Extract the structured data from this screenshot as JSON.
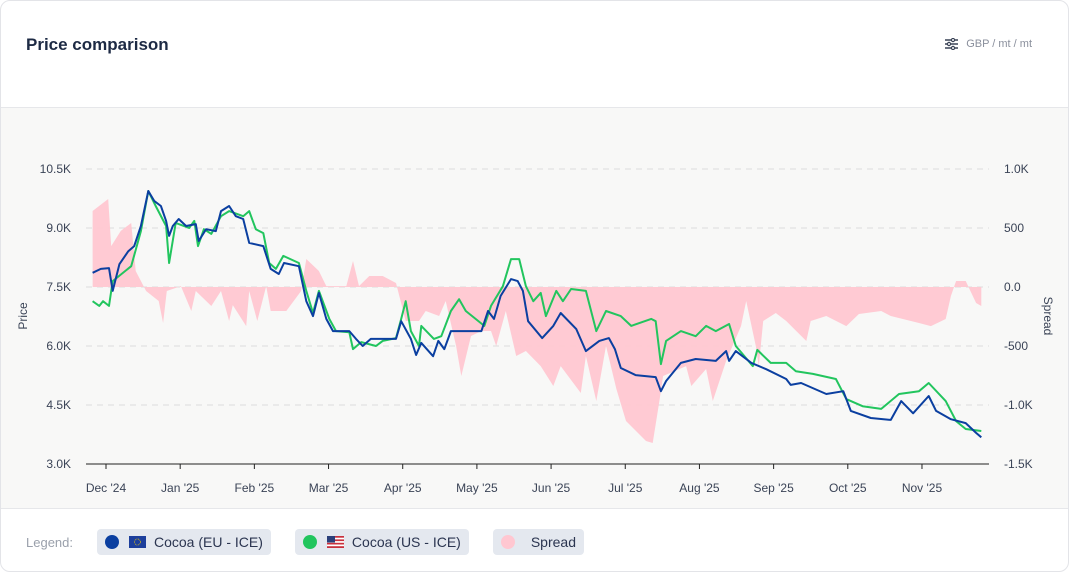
{
  "header": {
    "title": "Price comparison",
    "unit_label": "GBP / mt / mt",
    "settings_icon": "sliders-icon"
  },
  "legend": {
    "label": "Legend:",
    "items": [
      {
        "name": "Cocoa (EU - ICE)",
        "color": "#0b3fa0",
        "flag": "eu-flag"
      },
      {
        "name": "Cocoa (US - ICE)",
        "color": "#22c55e",
        "flag": "us-flag"
      },
      {
        "name": "Spread",
        "color": "#ffc7d1"
      }
    ]
  },
  "chart_data": {
    "type": "line",
    "title": "Price comparison",
    "ylabel": "Price",
    "y2label": "Spread",
    "x_tick_labels": [
      "Dec '24",
      "Jan '25",
      "Feb '25",
      "Mar '25",
      "Apr '25",
      "May '25",
      "Jun '25",
      "Jul '25",
      "Aug '25",
      "Sep '25",
      "Oct '25",
      "Nov '25"
    ],
    "x_units": "months since Dec '24",
    "xlim": [
      -0.23,
      11.85
    ],
    "y_ticks": [
      "3.0K",
      "4.5K",
      "6.0K",
      "7.5K",
      "9.0K",
      "10.5K"
    ],
    "y_tick_values": [
      3000,
      4500,
      6000,
      7500,
      9000,
      10500
    ],
    "ylim": [
      3000,
      10500
    ],
    "y2_ticks": [
      "-1.5K",
      "-1.0K",
      "-500",
      "0.0",
      "500",
      "1.0K"
    ],
    "y2_tick_values": [
      -1500,
      -1000,
      -500,
      0,
      500,
      1000
    ],
    "y2lim": [
      -1500,
      1000
    ],
    "grid": true,
    "series": [
      {
        "name": "Cocoa (EU - ICE)",
        "axis": "left",
        "type": "line",
        "color": "#0b3fa0",
        "points": [
          [
            -0.18,
            7.86
          ],
          [
            -0.07,
            7.96
          ],
          [
            0.04,
            7.98
          ],
          [
            0.09,
            7.4
          ],
          [
            0.18,
            8.08
          ],
          [
            0.3,
            8.41
          ],
          [
            0.38,
            8.54
          ],
          [
            0.47,
            9.05
          ],
          [
            0.57,
            9.94
          ],
          [
            0.65,
            9.69
          ],
          [
            0.74,
            9.56
          ],
          [
            0.81,
            9.18
          ],
          [
            0.85,
            8.8
          ],
          [
            0.9,
            9.05
          ],
          [
            0.98,
            9.23
          ],
          [
            1.08,
            9.05
          ],
          [
            1.21,
            9.1
          ],
          [
            1.25,
            8.67
          ],
          [
            1.35,
            8.97
          ],
          [
            1.48,
            8.92
          ],
          [
            1.55,
            9.43
          ],
          [
            1.66,
            9.56
          ],
          [
            1.75,
            9.3
          ],
          [
            1.85,
            9.23
          ],
          [
            1.93,
            8.62
          ],
          [
            2.12,
            8.54
          ],
          [
            2.22,
            7.96
          ],
          [
            2.33,
            7.83
          ],
          [
            2.4,
            8.11
          ],
          [
            2.6,
            8.03
          ],
          [
            2.7,
            7.14
          ],
          [
            2.79,
            6.76
          ],
          [
            2.87,
            7.35
          ],
          [
            2.97,
            6.69
          ],
          [
            3.06,
            6.38
          ],
          [
            3.28,
            6.38
          ],
          [
            3.37,
            6.18
          ],
          [
            3.46,
            6.0
          ],
          [
            3.57,
            6.18
          ],
          [
            3.77,
            6.18
          ],
          [
            3.91,
            6.18
          ],
          [
            3.98,
            6.63
          ],
          [
            4.11,
            6.18
          ],
          [
            4.18,
            5.77
          ],
          [
            4.25,
            6.08
          ],
          [
            4.41,
            5.74
          ],
          [
            4.48,
            6.13
          ],
          [
            4.56,
            5.92
          ],
          [
            4.65,
            6.38
          ],
          [
            4.85,
            6.38
          ],
          [
            5.06,
            6.38
          ],
          [
            5.15,
            6.89
          ],
          [
            5.23,
            6.69
          ],
          [
            5.32,
            7.27
          ],
          [
            5.46,
            7.7
          ],
          [
            5.55,
            7.65
          ],
          [
            5.62,
            7.4
          ],
          [
            5.69,
            6.63
          ],
          [
            5.88,
            6.2
          ],
          [
            6.03,
            6.51
          ],
          [
            6.13,
            6.84
          ],
          [
            6.34,
            6.43
          ],
          [
            6.47,
            5.87
          ],
          [
            6.65,
            6.13
          ],
          [
            6.78,
            6.2
          ],
          [
            6.86,
            5.92
          ],
          [
            6.94,
            5.44
          ],
          [
            7.14,
            5.26
          ],
          [
            7.41,
            5.21
          ],
          [
            7.48,
            4.85
          ],
          [
            7.55,
            5.11
          ],
          [
            7.75,
            5.57
          ],
          [
            7.95,
            5.67
          ],
          [
            8.22,
            5.62
          ],
          [
            8.36,
            5.87
          ],
          [
            8.4,
            5.62
          ],
          [
            8.49,
            5.87
          ],
          [
            8.7,
            5.57
          ],
          [
            8.9,
            5.41
          ],
          [
            9.17,
            5.16
          ],
          [
            9.23,
            5.01
          ],
          [
            9.37,
            5.06
          ],
          [
            9.71,
            4.78
          ],
          [
            9.94,
            4.85
          ],
          [
            10.04,
            4.35
          ],
          [
            10.31,
            4.17
          ],
          [
            10.58,
            4.12
          ],
          [
            10.72,
            4.6
          ],
          [
            10.88,
            4.29
          ],
          [
            11.09,
            4.73
          ],
          [
            11.19,
            4.35
          ],
          [
            11.39,
            4.14
          ],
          [
            11.59,
            4.04
          ],
          [
            11.73,
            3.79
          ],
          [
            11.8,
            3.68
          ]
        ]
      },
      {
        "name": "Cocoa (US - ICE)",
        "axis": "left",
        "type": "line",
        "color": "#22c55e",
        "points": [
          [
            -0.18,
            7.14
          ],
          [
            -0.09,
            7.02
          ],
          [
            -0.04,
            7.14
          ],
          [
            0.04,
            7.02
          ],
          [
            0.09,
            7.65
          ],
          [
            0.34,
            8.03
          ],
          [
            0.47,
            8.92
          ],
          [
            0.57,
            9.94
          ],
          [
            0.67,
            9.56
          ],
          [
            0.81,
            9.05
          ],
          [
            0.85,
            8.11
          ],
          [
            0.94,
            9.13
          ],
          [
            1.12,
            9.0
          ],
          [
            1.19,
            9.18
          ],
          [
            1.24,
            8.54
          ],
          [
            1.32,
            8.97
          ],
          [
            1.42,
            8.85
          ],
          [
            1.55,
            9.3
          ],
          [
            1.66,
            9.43
          ],
          [
            1.85,
            9.3
          ],
          [
            1.93,
            9.43
          ],
          [
            2.02,
            8.97
          ],
          [
            2.12,
            8.87
          ],
          [
            2.2,
            8.11
          ],
          [
            2.29,
            7.96
          ],
          [
            2.39,
            8.29
          ],
          [
            2.6,
            8.11
          ],
          [
            2.7,
            7.4
          ],
          [
            2.79,
            6.84
          ],
          [
            2.87,
            7.4
          ],
          [
            3.01,
            6.69
          ],
          [
            3.1,
            6.38
          ],
          [
            3.28,
            6.35
          ],
          [
            3.33,
            5.92
          ],
          [
            3.44,
            6.1
          ],
          [
            3.64,
            6.0
          ],
          [
            3.73,
            6.13
          ],
          [
            3.91,
            6.2
          ],
          [
            3.98,
            6.69
          ],
          [
            4.04,
            7.14
          ],
          [
            4.11,
            6.38
          ],
          [
            4.22,
            6.0
          ],
          [
            4.25,
            6.51
          ],
          [
            4.42,
            6.18
          ],
          [
            4.52,
            6.25
          ],
          [
            4.65,
            6.89
          ],
          [
            4.76,
            7.19
          ],
          [
            4.85,
            6.89
          ],
          [
            5.1,
            6.51
          ],
          [
            5.19,
            7.02
          ],
          [
            5.35,
            7.52
          ],
          [
            5.46,
            8.21
          ],
          [
            5.57,
            8.21
          ],
          [
            5.66,
            7.52
          ],
          [
            5.76,
            7.14
          ],
          [
            5.86,
            7.35
          ],
          [
            5.93,
            6.76
          ],
          [
            6.07,
            7.4
          ],
          [
            6.16,
            7.14
          ],
          [
            6.27,
            7.45
          ],
          [
            6.47,
            7.4
          ],
          [
            6.61,
            6.38
          ],
          [
            6.74,
            6.89
          ],
          [
            6.94,
            6.76
          ],
          [
            7.08,
            6.51
          ],
          [
            7.35,
            6.69
          ],
          [
            7.41,
            6.63
          ],
          [
            7.48,
            5.54
          ],
          [
            7.55,
            6.13
          ],
          [
            7.75,
            6.38
          ],
          [
            7.95,
            6.25
          ],
          [
            8.09,
            6.51
          ],
          [
            8.22,
            6.38
          ],
          [
            8.4,
            6.56
          ],
          [
            8.49,
            6.0
          ],
          [
            8.72,
            5.49
          ],
          [
            8.78,
            5.9
          ],
          [
            8.96,
            5.57
          ],
          [
            9.17,
            5.57
          ],
          [
            9.3,
            5.36
          ],
          [
            9.53,
            5.29
          ],
          [
            9.84,
            5.16
          ],
          [
            9.98,
            4.65
          ],
          [
            10.2,
            4.47
          ],
          [
            10.45,
            4.4
          ],
          [
            10.69,
            4.78
          ],
          [
            10.96,
            4.85
          ],
          [
            11.09,
            5.06
          ],
          [
            11.32,
            4.6
          ],
          [
            11.46,
            4.09
          ],
          [
            11.59,
            3.89
          ],
          [
            11.8,
            3.84
          ]
        ]
      },
      {
        "name": "Spread",
        "axis": "right",
        "type": "area",
        "color": "#ffc7d1",
        "points": [
          [
            -0.18,
            644
          ],
          [
            0.03,
            746
          ],
          [
            0.07,
            347
          ],
          [
            0.2,
            475
          ],
          [
            0.34,
            542
          ],
          [
            0.4,
            136
          ],
          [
            0.54,
            -34
          ],
          [
            0.71,
            -119
          ],
          [
            0.77,
            -305
          ],
          [
            0.82,
            -34
          ],
          [
            1.01,
            8
          ],
          [
            1.15,
            -203
          ],
          [
            1.21,
            -34
          ],
          [
            1.42,
            -161
          ],
          [
            1.55,
            -34
          ],
          [
            1.66,
            -288
          ],
          [
            1.71,
            -153
          ],
          [
            1.89,
            -331
          ],
          [
            1.93,
            -34
          ],
          [
            2.04,
            -288
          ],
          [
            2.16,
            8
          ],
          [
            2.22,
            -203
          ],
          [
            2.43,
            -203
          ],
          [
            2.63,
            -34
          ],
          [
            2.7,
            237
          ],
          [
            2.87,
            136
          ],
          [
            2.97,
            8
          ],
          [
            3.24,
            8
          ],
          [
            3.33,
            220
          ],
          [
            3.41,
            8
          ],
          [
            3.55,
            93
          ],
          [
            3.73,
            93
          ],
          [
            3.91,
            34
          ],
          [
            4.04,
            -288
          ],
          [
            4.22,
            -288
          ],
          [
            4.31,
            -203
          ],
          [
            4.49,
            -246
          ],
          [
            4.58,
            -119
          ],
          [
            4.72,
            -500
          ],
          [
            4.79,
            -754
          ],
          [
            4.92,
            -415
          ],
          [
            5.06,
            -373
          ],
          [
            5.19,
            -373
          ],
          [
            5.26,
            -500
          ],
          [
            5.39,
            -203
          ],
          [
            5.53,
            -585
          ],
          [
            5.66,
            -542
          ],
          [
            5.86,
            -670
          ],
          [
            6.03,
            -839
          ],
          [
            6.13,
            -670
          ],
          [
            6.4,
            -898
          ],
          [
            6.47,
            -585
          ],
          [
            6.61,
            -966
          ],
          [
            6.74,
            -500
          ],
          [
            6.88,
            -864
          ],
          [
            7.01,
            -1136
          ],
          [
            7.28,
            -1305
          ],
          [
            7.37,
            -1322
          ],
          [
            7.46,
            -966
          ],
          [
            7.51,
            -754
          ],
          [
            7.82,
            -670
          ],
          [
            7.89,
            -839
          ],
          [
            8.09,
            -695
          ],
          [
            8.18,
            -966
          ],
          [
            8.36,
            -627
          ],
          [
            8.56,
            -331
          ],
          [
            8.63,
            -119
          ],
          [
            8.76,
            -500
          ],
          [
            8.8,
            -670
          ],
          [
            8.86,
            -288
          ],
          [
            9.03,
            -220
          ],
          [
            9.17,
            -288
          ],
          [
            9.44,
            -458
          ],
          [
            9.5,
            -288
          ],
          [
            9.71,
            -246
          ],
          [
            9.98,
            -331
          ],
          [
            10.15,
            -229
          ],
          [
            10.45,
            -203
          ],
          [
            10.58,
            -246
          ],
          [
            10.96,
            -305
          ],
          [
            11.12,
            -331
          ],
          [
            11.32,
            -271
          ],
          [
            11.39,
            -76
          ],
          [
            11.46,
            51
          ],
          [
            11.59,
            51
          ],
          [
            11.73,
            -136
          ],
          [
            11.8,
            -161
          ]
        ]
      }
    ],
    "price_units_note": "left-axis points in thousands (K)",
    "legend_position": "bottom"
  }
}
